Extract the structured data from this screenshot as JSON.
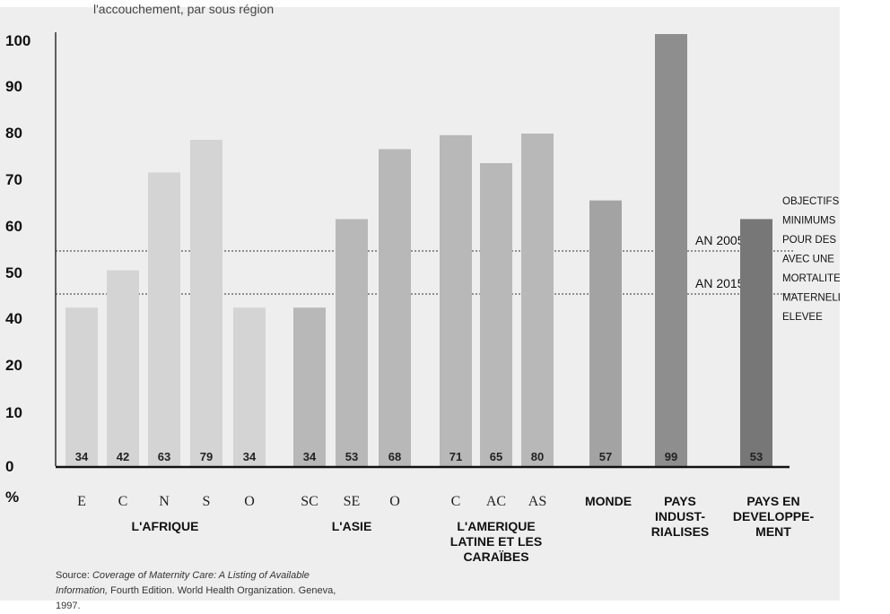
{
  "subtitle": "l'accouchement, par sous région",
  "source": {
    "prefix": "Source:",
    "title": "Coverage of Maternity Care: A Listing of Available Information,",
    "rest": "Fourth Edition. World Health Organization. Geneva, 1997."
  },
  "target_note": [
    "OBJECTIFS",
    "MINIMUMS",
    "POUR DES PAYS",
    "AVEC UNE",
    "MORTALITE",
    "MATERNELLE",
    "ELEVEE"
  ],
  "colors": {
    "panel": "#eeeeee",
    "africa": "#d4d4d4",
    "asia_latam": "#b8b8b8",
    "monde": "#a3a3a3",
    "industrial": "#8e8e8e",
    "developing": "#777777",
    "axis": "#111111"
  },
  "chart_data": {
    "type": "bar",
    "y_unit_label": "%",
    "yticks": [
      0,
      10,
      20,
      40,
      50,
      60,
      70,
      80,
      90,
      100
    ],
    "ylim": [
      0,
      100
    ],
    "categories": [
      "E",
      "C",
      "N",
      "S",
      "O",
      "SC",
      "SE",
      "O",
      "C",
      "AC",
      "AS",
      "",
      "",
      ""
    ],
    "values": [
      34,
      42,
      63,
      79,
      34,
      34,
      53,
      68,
      71,
      65,
      80,
      57,
      99,
      53
    ],
    "data_labels": [
      "34",
      "42",
      "63",
      "79",
      "34",
      "34",
      "53",
      "68",
      "71",
      "65",
      "80",
      "57",
      "99",
      "53"
    ],
    "bar_colors": [
      "africa",
      "africa",
      "africa",
      "africa",
      "africa",
      "asia_latam",
      "asia_latam",
      "asia_latam",
      "asia_latam",
      "asia_latam",
      "asia_latam",
      "monde",
      "industrial",
      "developing"
    ],
    "groups": [
      {
        "lines": [
          "L'AFRIQUE"
        ],
        "from": 0,
        "to": 4
      },
      {
        "lines": [
          "L'ASIE"
        ],
        "from": 5,
        "to": 7
      },
      {
        "lines": [
          "L'AMERIQUE",
          "LATINE ET LES",
          "CARAÏBES"
        ],
        "from": 8,
        "to": 10
      },
      {
        "lines": [
          "MONDE"
        ],
        "from": 11,
        "to": 11
      },
      {
        "lines": [
          "PAYS",
          "INDUST-",
          "RIALISES"
        ],
        "from": 12,
        "to": 12
      },
      {
        "lines": [
          "PAYS EN",
          "DEVELOPPE-",
          "MENT"
        ],
        "from": 13,
        "to": 13
      }
    ],
    "reference_lines": [
      {
        "label": "AN 2005",
        "value": 55
      },
      {
        "label": "AN 2015",
        "value": 45
      }
    ]
  }
}
